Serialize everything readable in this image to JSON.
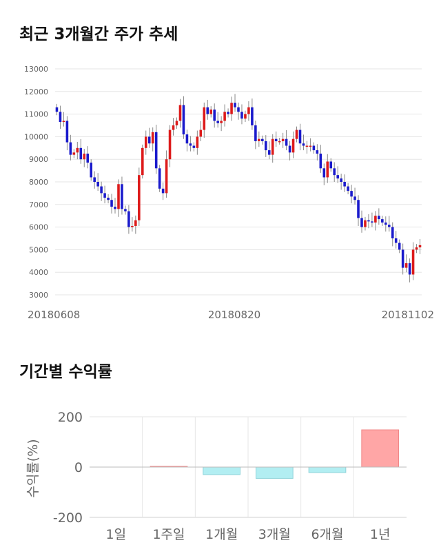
{
  "titles": {
    "price_trend": "최근 3개월간 주가 추세",
    "period_returns": "기간별 수익률"
  },
  "colors": {
    "up": "#dd1a1a",
    "down": "#1a1acc",
    "wick": "#888888",
    "grid": "#e6e6e6",
    "bar_positive_fill": "#ffa6a6",
    "bar_negative_fill": "#b2eef2"
  },
  "chart_data": [
    {
      "type": "candlestick",
      "title": "최근 3개월간 주가 추세",
      "y_ticks": [
        3000,
        4000,
        5000,
        6000,
        7000,
        8000,
        9000,
        10000,
        11000,
        12000,
        13000
      ],
      "ylim": [
        3000,
        13000
      ],
      "x_tick_labels": [
        "20180608",
        "20180820",
        "20181102"
      ],
      "grid": true,
      "closes": [
        11100,
        10650,
        10700,
        9750,
        9200,
        9300,
        9500,
        9000,
        9250,
        8850,
        8200,
        8000,
        7800,
        7500,
        7300,
        7200,
        6900,
        6800,
        7900,
        6800,
        6700,
        6000,
        6050,
        6300,
        8300,
        9500,
        10000,
        9700,
        10200,
        8600,
        7700,
        7500,
        9000,
        10300,
        10500,
        10700,
        11400,
        10100,
        9700,
        9600,
        9500,
        10000,
        10300,
        11300,
        11000,
        11200,
        10700,
        10600,
        10700,
        11100,
        11000,
        11500,
        11300,
        11100,
        10800,
        11000,
        11300,
        10500,
        9800,
        9900,
        9800,
        9400,
        9200,
        9900,
        9800,
        9800,
        9900,
        9600,
        9300,
        9900,
        10300,
        9700,
        9600,
        9600,
        9600,
        9400,
        9250,
        8600,
        8200,
        8900,
        8600,
        8300,
        8150,
        8000,
        7800,
        7600,
        7350,
        7200,
        6400,
        6000,
        6300,
        6250,
        6200,
        6500,
        6350,
        6200,
        6100,
        6000,
        5500,
        5300,
        5000,
        4200,
        4400,
        3900,
        5000,
        5100,
        5200
      ]
    },
    {
      "type": "bar",
      "title": "기간별 수익률",
      "ylabel": "수익률(%)",
      "ylim": [
        -200,
        200
      ],
      "y_ticks": [
        -200,
        0,
        200
      ],
      "categories": [
        "1일",
        "1주일",
        "1개월",
        "3개월",
        "6개월",
        "1년"
      ],
      "values": [
        0,
        3,
        -30,
        -45,
        -22,
        148
      ],
      "grid": true
    }
  ]
}
